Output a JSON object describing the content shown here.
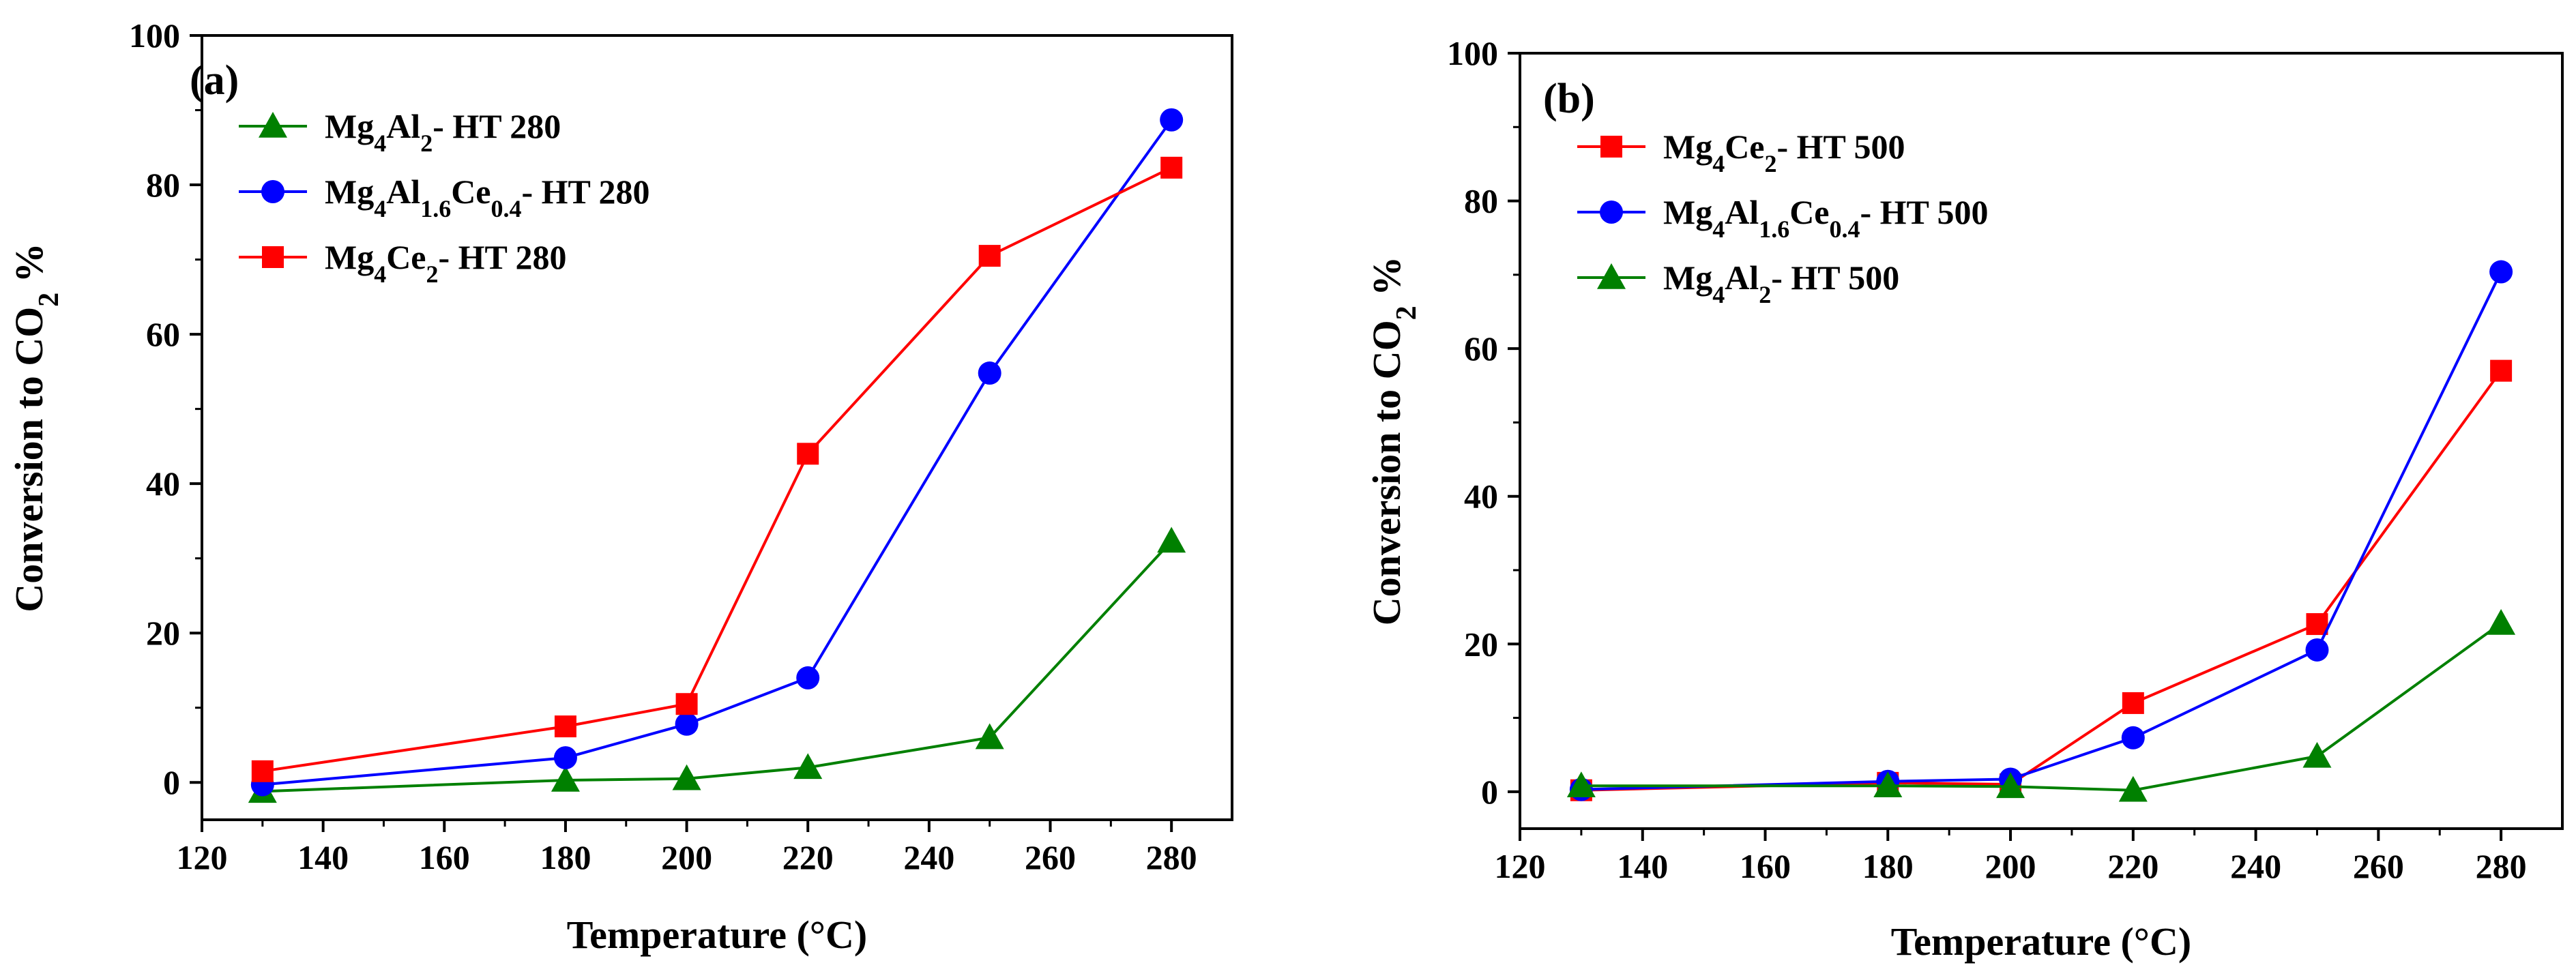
{
  "chart_data": [
    {
      "type": "line",
      "panel_label": "(a)",
      "xlabel": "Temperature (°C)",
      "ylabel_prefix": "Conversion to CO",
      "ylabel_sub": "2",
      "ylabel_suffix": " %",
      "xlim": [
        120,
        290
      ],
      "ylim": [
        -5,
        100
      ],
      "xticks": [
        120,
        140,
        160,
        180,
        200,
        220,
        240,
        260,
        280
      ],
      "yticks": [
        0,
        20,
        40,
        60,
        80,
        100
      ],
      "legend_position": "top-left",
      "series": [
        {
          "name": "Mg4Al2- HT 280",
          "legend_parts": [
            {
              "t": "Mg"
            },
            {
              "t": "4",
              "sub": true
            },
            {
              "t": "Al"
            },
            {
              "t": "2",
              "sub": true
            },
            {
              "t": "- HT 280"
            }
          ],
          "color": "#008000",
          "marker": "triangle",
          "x": [
            130,
            180,
            200,
            220,
            250,
            280
          ],
          "y": [
            -1.2,
            0.3,
            0.5,
            2.0,
            6.0,
            32.3
          ]
        },
        {
          "name": "Mg4Al1.6Ce0.4- HT 280",
          "legend_parts": [
            {
              "t": "Mg"
            },
            {
              "t": "4",
              "sub": true
            },
            {
              "t": "Al"
            },
            {
              "t": "1.6",
              "sub": true
            },
            {
              "t": "Ce"
            },
            {
              "t": "0.4",
              "sub": true
            },
            {
              "t": "- HT 280"
            }
          ],
          "color": "#0000ff",
          "marker": "circle",
          "x": [
            130,
            180,
            200,
            220,
            250,
            280
          ],
          "y": [
            -0.3,
            3.3,
            7.8,
            14.0,
            54.8,
            88.7
          ]
        },
        {
          "name": "Mg4Ce2- HT 280",
          "legend_parts": [
            {
              "t": "Mg"
            },
            {
              "t": "4",
              "sub": true
            },
            {
              "t": "Ce"
            },
            {
              "t": "2",
              "sub": true
            },
            {
              "t": "- HT 280"
            }
          ],
          "color": "#ff0000",
          "marker": "square",
          "x": [
            130,
            180,
            200,
            220,
            250,
            280
          ],
          "y": [
            1.5,
            7.5,
            10.5,
            44.0,
            70.5,
            82.3
          ]
        }
      ]
    },
    {
      "type": "line",
      "panel_label": "(b)",
      "xlabel": "Temperature (°C)",
      "ylabel_prefix": "Conversion to CO",
      "ylabel_sub": "2",
      "ylabel_suffix": " %",
      "xlim": [
        120,
        290
      ],
      "ylim": [
        -5,
        100
      ],
      "xticks": [
        120,
        140,
        160,
        180,
        200,
        220,
        240,
        260,
        280
      ],
      "yticks": [
        0,
        20,
        40,
        60,
        80,
        100
      ],
      "legend_position": "top-left",
      "series": [
        {
          "name": "Mg4Ce2- HT 500",
          "legend_parts": [
            {
              "t": "Mg"
            },
            {
              "t": "4",
              "sub": true
            },
            {
              "t": "Ce"
            },
            {
              "t": "2",
              "sub": true
            },
            {
              "t": "- HT 500"
            }
          ],
          "color": "#ff0000",
          "marker": "square",
          "x": [
            130,
            180,
            200,
            220,
            250,
            280
          ],
          "y": [
            0.2,
            1.2,
            1.0,
            12.0,
            22.7,
            57.0
          ]
        },
        {
          "name": "Mg4Al1.6Ce0.4- HT 500",
          "legend_parts": [
            {
              "t": "Mg"
            },
            {
              "t": "4",
              "sub": true
            },
            {
              "t": "Al"
            },
            {
              "t": "1.6",
              "sub": true
            },
            {
              "t": "Ce"
            },
            {
              "t": "0.4",
              "sub": true
            },
            {
              "t": "- HT 500"
            }
          ],
          "color": "#0000ff",
          "marker": "circle",
          "x": [
            130,
            180,
            200,
            220,
            250,
            280
          ],
          "y": [
            0.3,
            1.4,
            1.7,
            7.3,
            19.2,
            70.4
          ]
        },
        {
          "name": "Mg4Al2- HT 500",
          "legend_parts": [
            {
              "t": "Mg"
            },
            {
              "t": "4",
              "sub": true
            },
            {
              "t": "Al"
            },
            {
              "t": "2",
              "sub": true
            },
            {
              "t": "- HT 500"
            }
          ],
          "color": "#008000",
          "marker": "triangle",
          "x": [
            130,
            180,
            200,
            220,
            250,
            280
          ],
          "y": [
            0.8,
            0.8,
            0.7,
            0.2,
            4.8,
            22.8
          ]
        }
      ]
    }
  ]
}
